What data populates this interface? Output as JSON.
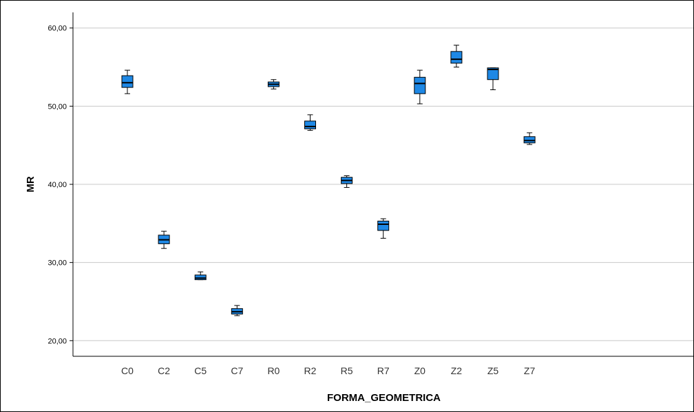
{
  "chart_data": {
    "type": "boxplot",
    "title": "",
    "xlabel": "FORMA_GEOMETRICA",
    "ylabel": "MR",
    "ylim": [
      18,
      62
    ],
    "yticks": [
      20,
      30,
      40,
      50,
      60
    ],
    "ytick_labels": [
      "20,00",
      "30,00",
      "40,00",
      "50,00",
      "60,00"
    ],
    "grid": true,
    "box_color": "#1e88e5",
    "grid_color": "#c8c8c8",
    "categories": [
      "C0",
      "C2",
      "C5",
      "C7",
      "R0",
      "R2",
      "R5",
      "R7",
      "Z0",
      "Z2",
      "Z5",
      "Z7"
    ],
    "boxes": [
      {
        "min": 51.6,
        "q1": 52.4,
        "median": 53.0,
        "q3": 53.9,
        "max": 54.6
      },
      {
        "min": 31.8,
        "q1": 32.4,
        "median": 32.9,
        "q3": 33.5,
        "max": 34.0
      },
      {
        "min": 27.8,
        "q1": 27.8,
        "median": 28.0,
        "q3": 28.4,
        "max": 28.8
      },
      {
        "min": 23.2,
        "q1": 23.4,
        "median": 23.7,
        "q3": 24.1,
        "max": 24.5
      },
      {
        "min": 52.2,
        "q1": 52.5,
        "median": 52.8,
        "q3": 53.1,
        "max": 53.4
      },
      {
        "min": 46.9,
        "q1": 47.1,
        "median": 47.4,
        "q3": 48.1,
        "max": 48.9
      },
      {
        "min": 39.6,
        "q1": 40.1,
        "median": 40.5,
        "q3": 40.9,
        "max": 41.1
      },
      {
        "min": 33.1,
        "q1": 34.1,
        "median": 34.9,
        "q3": 35.3,
        "max": 35.6
      },
      {
        "min": 50.3,
        "q1": 51.6,
        "median": 52.9,
        "q3": 53.7,
        "max": 54.6
      },
      {
        "min": 55.0,
        "q1": 55.5,
        "median": 56.0,
        "q3": 57.0,
        "max": 57.8
      },
      {
        "min": 52.1,
        "q1": 53.4,
        "median": 54.7,
        "q3": 54.9,
        "max": 54.9
      },
      {
        "min": 45.1,
        "q1": 45.3,
        "median": 45.6,
        "q3": 46.1,
        "max": 46.6
      }
    ]
  }
}
